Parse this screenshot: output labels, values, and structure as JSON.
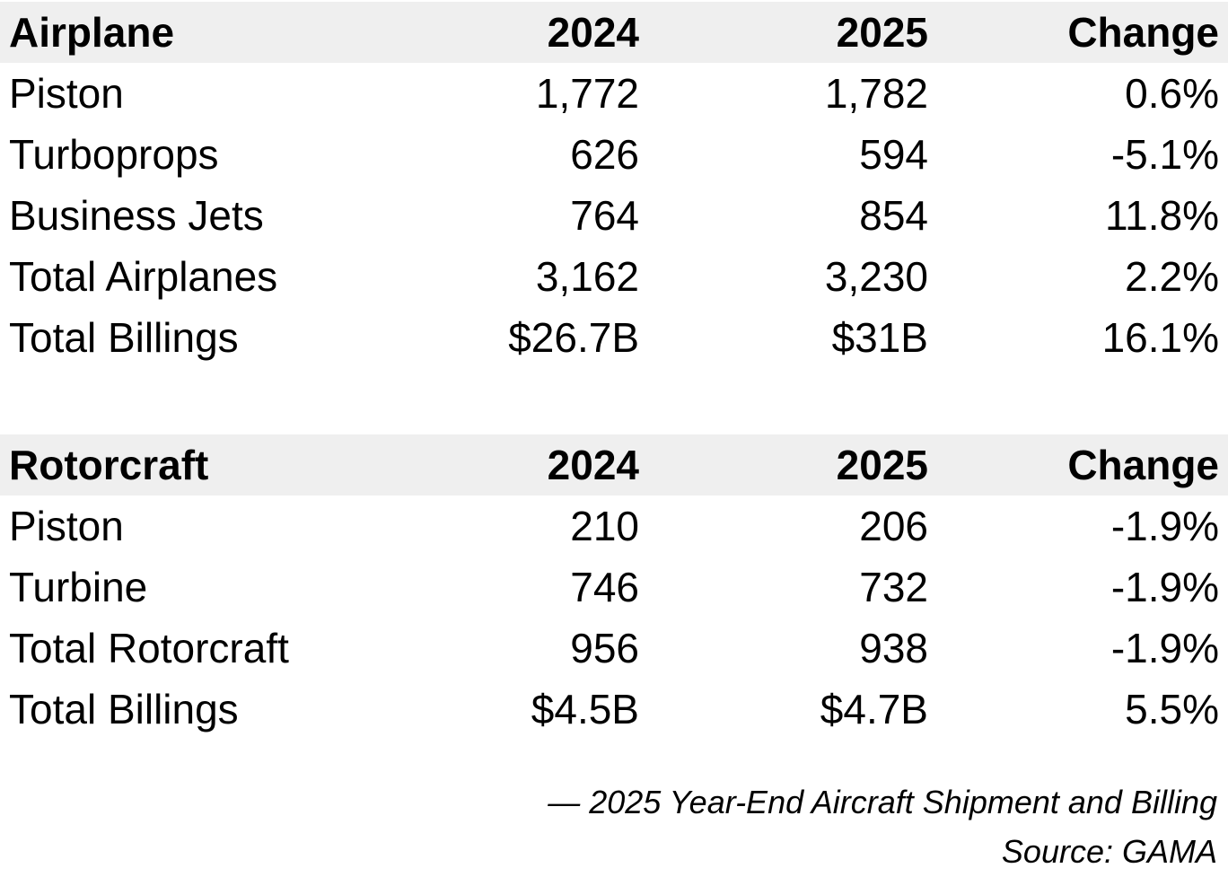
{
  "airplane": {
    "header": {
      "category": "Airplane",
      "y2024": "2024",
      "y2025": "2025",
      "change": "Change"
    },
    "rows": [
      {
        "label": "Piston",
        "y2024": "1,772",
        "y2025": "1,782",
        "change": "0.6%"
      },
      {
        "label": "Turboprops",
        "y2024": "626",
        "y2025": "594",
        "change": "-5.1%"
      },
      {
        "label": "Business Jets",
        "y2024": "764",
        "y2025": "854",
        "change": "11.8%"
      },
      {
        "label": "Total Airplanes",
        "y2024": "3,162",
        "y2025": "3,230",
        "change": "2.2%"
      },
      {
        "label": "Total Billings",
        "y2024": "$26.7B",
        "y2025": "$31B",
        "change": "16.1%"
      }
    ]
  },
  "rotorcraft": {
    "header": {
      "category": "Rotorcraft",
      "y2024": "2024",
      "y2025": "2025",
      "change": "Change"
    },
    "rows": [
      {
        "label": "Piston",
        "y2024": "210",
        "y2025": "206",
        "change": "-1.9%"
      },
      {
        "label": "Turbine",
        "y2024": "746",
        "y2025": "732",
        "change": "-1.9%"
      },
      {
        "label": "Total Rotorcraft",
        "y2024": "956",
        "y2025": "938",
        "change": "-1.9%"
      },
      {
        "label": "Total Billings",
        "y2024": "$4.5B",
        "y2025": "$4.7B",
        "change": "5.5%"
      }
    ]
  },
  "caption": {
    "line1": "— 2025 Year-End Aircraft Shipment and Billing",
    "line2": "Source: GAMA"
  },
  "colors": {
    "header_background": "#efefef",
    "text": "#000000",
    "page_background": "#ffffff"
  }
}
